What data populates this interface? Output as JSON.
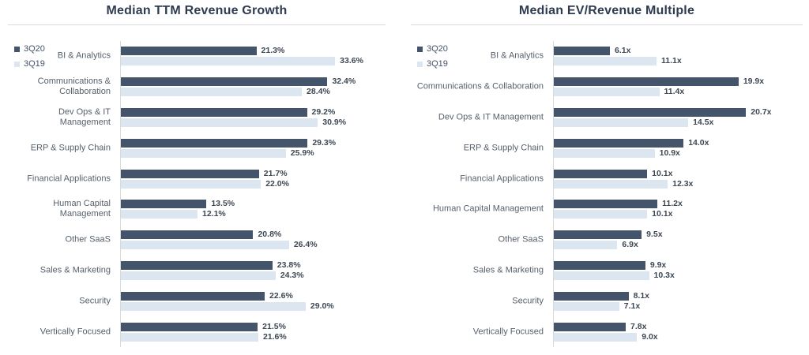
{
  "colors": {
    "series_3q20": "#44546A",
    "series_3q19": "#DCE6F1",
    "title_text": "#2E3B50",
    "category_text": "#57606B",
    "value_text": "#3E4854",
    "divider_line": "#D9D9D9",
    "axis_line": "#D9D9D9"
  },
  "chart_data": [
    {
      "type": "bar",
      "orientation": "horizontal",
      "title": "Median TTM Revenue Growth",
      "categories": [
        "BI & Analytics",
        "Communications & Collaboration",
        "Dev Ops & IT Management",
        "ERP & Supply Chain",
        "Financial Applications",
        "Human Capital Management",
        "Other SaaS",
        "Sales & Marketing",
        "Security",
        "Vertically Focused"
      ],
      "series": [
        {
          "name": "3Q20",
          "color": "#44546A",
          "values": [
            21.3,
            32.4,
            29.2,
            29.3,
            21.7,
            13.5,
            20.8,
            23.8,
            22.6,
            21.5
          ]
        },
        {
          "name": "3Q19",
          "color": "#DCE6F1",
          "values": [
            33.6,
            28.4,
            30.9,
            25.9,
            22.0,
            12.1,
            26.4,
            24.3,
            29.0,
            21.6
          ]
        }
      ],
      "value_suffix": "%",
      "value_decimals": 1,
      "xlim": [
        0,
        36
      ],
      "grid": false,
      "data_labels": true,
      "legend_position": "top-left"
    },
    {
      "type": "bar",
      "orientation": "horizontal",
      "title": "Median EV/Revenue Multiple",
      "categories": [
        "BI & Analytics",
        "Communications & Collaboration",
        "Dev Ops & IT Management",
        "ERP & Supply Chain",
        "Financial Applications",
        "Human Capital Management",
        "Other SaaS",
        "Sales & Marketing",
        "Security",
        "Vertically Focused"
      ],
      "series": [
        {
          "name": "3Q20",
          "color": "#44546A",
          "values": [
            6.1,
            19.9,
            20.7,
            14.0,
            10.1,
            11.2,
            9.5,
            9.9,
            8.1,
            7.8
          ]
        },
        {
          "name": "3Q19",
          "color": "#DCE6F1",
          "values": [
            11.1,
            11.4,
            14.5,
            10.9,
            12.3,
            10.1,
            6.9,
            10.3,
            7.1,
            9.0
          ]
        }
      ],
      "value_suffix": "x",
      "value_decimals": 1,
      "xlim": [
        0,
        22
      ],
      "grid": false,
      "data_labels": true,
      "legend_position": "top-left"
    }
  ]
}
